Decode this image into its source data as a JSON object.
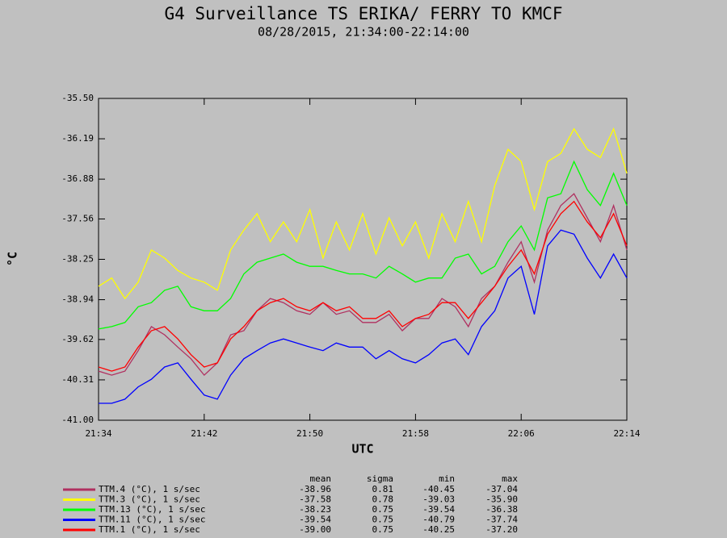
{
  "chart_data": {
    "type": "line",
    "title": "G4 Surveillance TS ERIKA/ FERRY TO KMCF",
    "subtitle": "08/28/2015, 21:34:00-22:14:00",
    "xlabel": "UTC",
    "ylabel": "°C",
    "x": [
      "21:34",
      "21:35",
      "21:36",
      "21:37",
      "21:38",
      "21:39",
      "21:40",
      "21:41",
      "21:42",
      "21:43",
      "21:44",
      "21:45",
      "21:46",
      "21:47",
      "21:48",
      "21:49",
      "21:50",
      "21:51",
      "21:52",
      "21:53",
      "21:54",
      "21:55",
      "21:56",
      "21:57",
      "21:58",
      "21:59",
      "22:00",
      "22:01",
      "22:02",
      "22:03",
      "22:04",
      "22:05",
      "22:06",
      "22:07",
      "22:08",
      "22:09",
      "22:10",
      "22:11",
      "22:12",
      "22:13",
      "22:14"
    ],
    "xticks": [
      "21:34",
      "21:42",
      "21:50",
      "21:58",
      "22:06",
      "22:14"
    ],
    "ylim": [
      -41,
      -35.5
    ],
    "yticks": [
      {
        "value": -41,
        "label": "-41.00"
      },
      {
        "value": -40.31,
        "label": "-40.31"
      },
      {
        "value": -39.62,
        "label": "-39.62"
      },
      {
        "value": -38.94,
        "label": "-38.94"
      },
      {
        "value": -38.25,
        "label": "-38.25"
      },
      {
        "value": -37.56,
        "label": "-37.56"
      },
      {
        "value": -36.88,
        "label": "-36.88"
      },
      {
        "value": -36.19,
        "label": "-36.19"
      },
      {
        "value": -35.5,
        "label": "-35.50"
      }
    ],
    "stats_headers": [
      "mean",
      "sigma",
      "min",
      "max"
    ],
    "series": [
      {
        "name": "TTM.4 (°C), 1 s/sec",
        "color": "#b03060",
        "stats": [
          "-38.96",
          "0.81",
          "-40.45",
          "-37.04"
        ],
        "values": [
          -40.16,
          -40.23,
          -40.16,
          -39.81,
          -39.4,
          -39.54,
          -39.75,
          -39.95,
          -40.23,
          -40.02,
          -39.54,
          -39.47,
          -39.13,
          -38.92,
          -38.99,
          -39.13,
          -39.19,
          -38.99,
          -39.19,
          -39.13,
          -39.33,
          -39.33,
          -39.19,
          -39.47,
          -39.26,
          -39.26,
          -38.92,
          -39.06,
          -39.4,
          -38.92,
          -38.71,
          -38.3,
          -37.95,
          -38.64,
          -37.75,
          -37.33,
          -37.13,
          -37.54,
          -37.95,
          -37.33,
          -38.09
        ]
      },
      {
        "name": "TTM.3 (°C), 1 s/sec",
        "color": "#ffff00",
        "stats": [
          "-37.58",
          "0.78",
          "-39.03",
          "-35.90"
        ],
        "values": [
          -38.71,
          -38.57,
          -38.92,
          -38.64,
          -38.09,
          -38.23,
          -38.44,
          -38.57,
          -38.64,
          -38.78,
          -38.09,
          -37.75,
          -37.47,
          -37.95,
          -37.61,
          -37.95,
          -37.4,
          -38.23,
          -37.61,
          -38.09,
          -37.47,
          -38.16,
          -37.54,
          -38.02,
          -37.61,
          -38.23,
          -37.47,
          -37.95,
          -37.26,
          -37.95,
          -36.99,
          -36.37,
          -36.58,
          -37.4,
          -36.58,
          -36.44,
          -36.02,
          -36.37,
          -36.51,
          -36.02,
          -36.78
        ]
      },
      {
        "name": "TTM.13 (°C), 1 s/sec",
        "color": "#00ff00",
        "stats": [
          "-38.23",
          "0.75",
          "-39.54",
          "-36.38"
        ],
        "values": [
          -39.44,
          -39.4,
          -39.33,
          -39.06,
          -38.99,
          -38.78,
          -38.71,
          -39.06,
          -39.13,
          -39.13,
          -38.92,
          -38.5,
          -38.3,
          -38.23,
          -38.16,
          -38.3,
          -38.37,
          -38.37,
          -38.44,
          -38.5,
          -38.5,
          -38.57,
          -38.37,
          -38.5,
          -38.64,
          -38.57,
          -38.57,
          -38.23,
          -38.16,
          -38.5,
          -38.37,
          -37.95,
          -37.68,
          -38.09,
          -37.2,
          -37.13,
          -36.58,
          -37.06,
          -37.33,
          -36.78,
          -37.33
        ]
      },
      {
        "name": "TTM.11 (°C), 1 s/sec",
        "color": "#0000ff",
        "stats": [
          "-39.54",
          "0.75",
          "-40.79",
          "-37.74"
        ],
        "values": [
          -40.71,
          -40.71,
          -40.64,
          -40.43,
          -40.3,
          -40.09,
          -40.02,
          -40.3,
          -40.57,
          -40.64,
          -40.23,
          -39.95,
          -39.81,
          -39.68,
          -39.61,
          -39.68,
          -39.75,
          -39.81,
          -39.68,
          -39.75,
          -39.75,
          -39.95,
          -39.81,
          -39.95,
          -40.02,
          -39.88,
          -39.68,
          -39.61,
          -39.88,
          -39.4,
          -39.13,
          -38.57,
          -38.37,
          -39.19,
          -38.02,
          -37.75,
          -37.82,
          -38.23,
          -38.57,
          -38.16,
          -38.57
        ]
      },
      {
        "name": "TTM.1 (°C), 1 s/sec",
        "color": "#ff0000",
        "stats": [
          "-39.00",
          "0.75",
          "-40.25",
          "-37.20"
        ],
        "values": [
          -40.09,
          -40.16,
          -40.09,
          -39.75,
          -39.47,
          -39.4,
          -39.61,
          -39.88,
          -40.09,
          -40.02,
          -39.61,
          -39.4,
          -39.13,
          -38.99,
          -38.92,
          -39.06,
          -39.13,
          -38.99,
          -39.13,
          -39.06,
          -39.26,
          -39.26,
          -39.13,
          -39.4,
          -39.26,
          -39.19,
          -38.99,
          -38.99,
          -39.26,
          -38.99,
          -38.71,
          -38.37,
          -38.09,
          -38.5,
          -37.82,
          -37.47,
          -37.26,
          -37.61,
          -37.88,
          -37.47,
          -38.02
        ]
      }
    ]
  }
}
